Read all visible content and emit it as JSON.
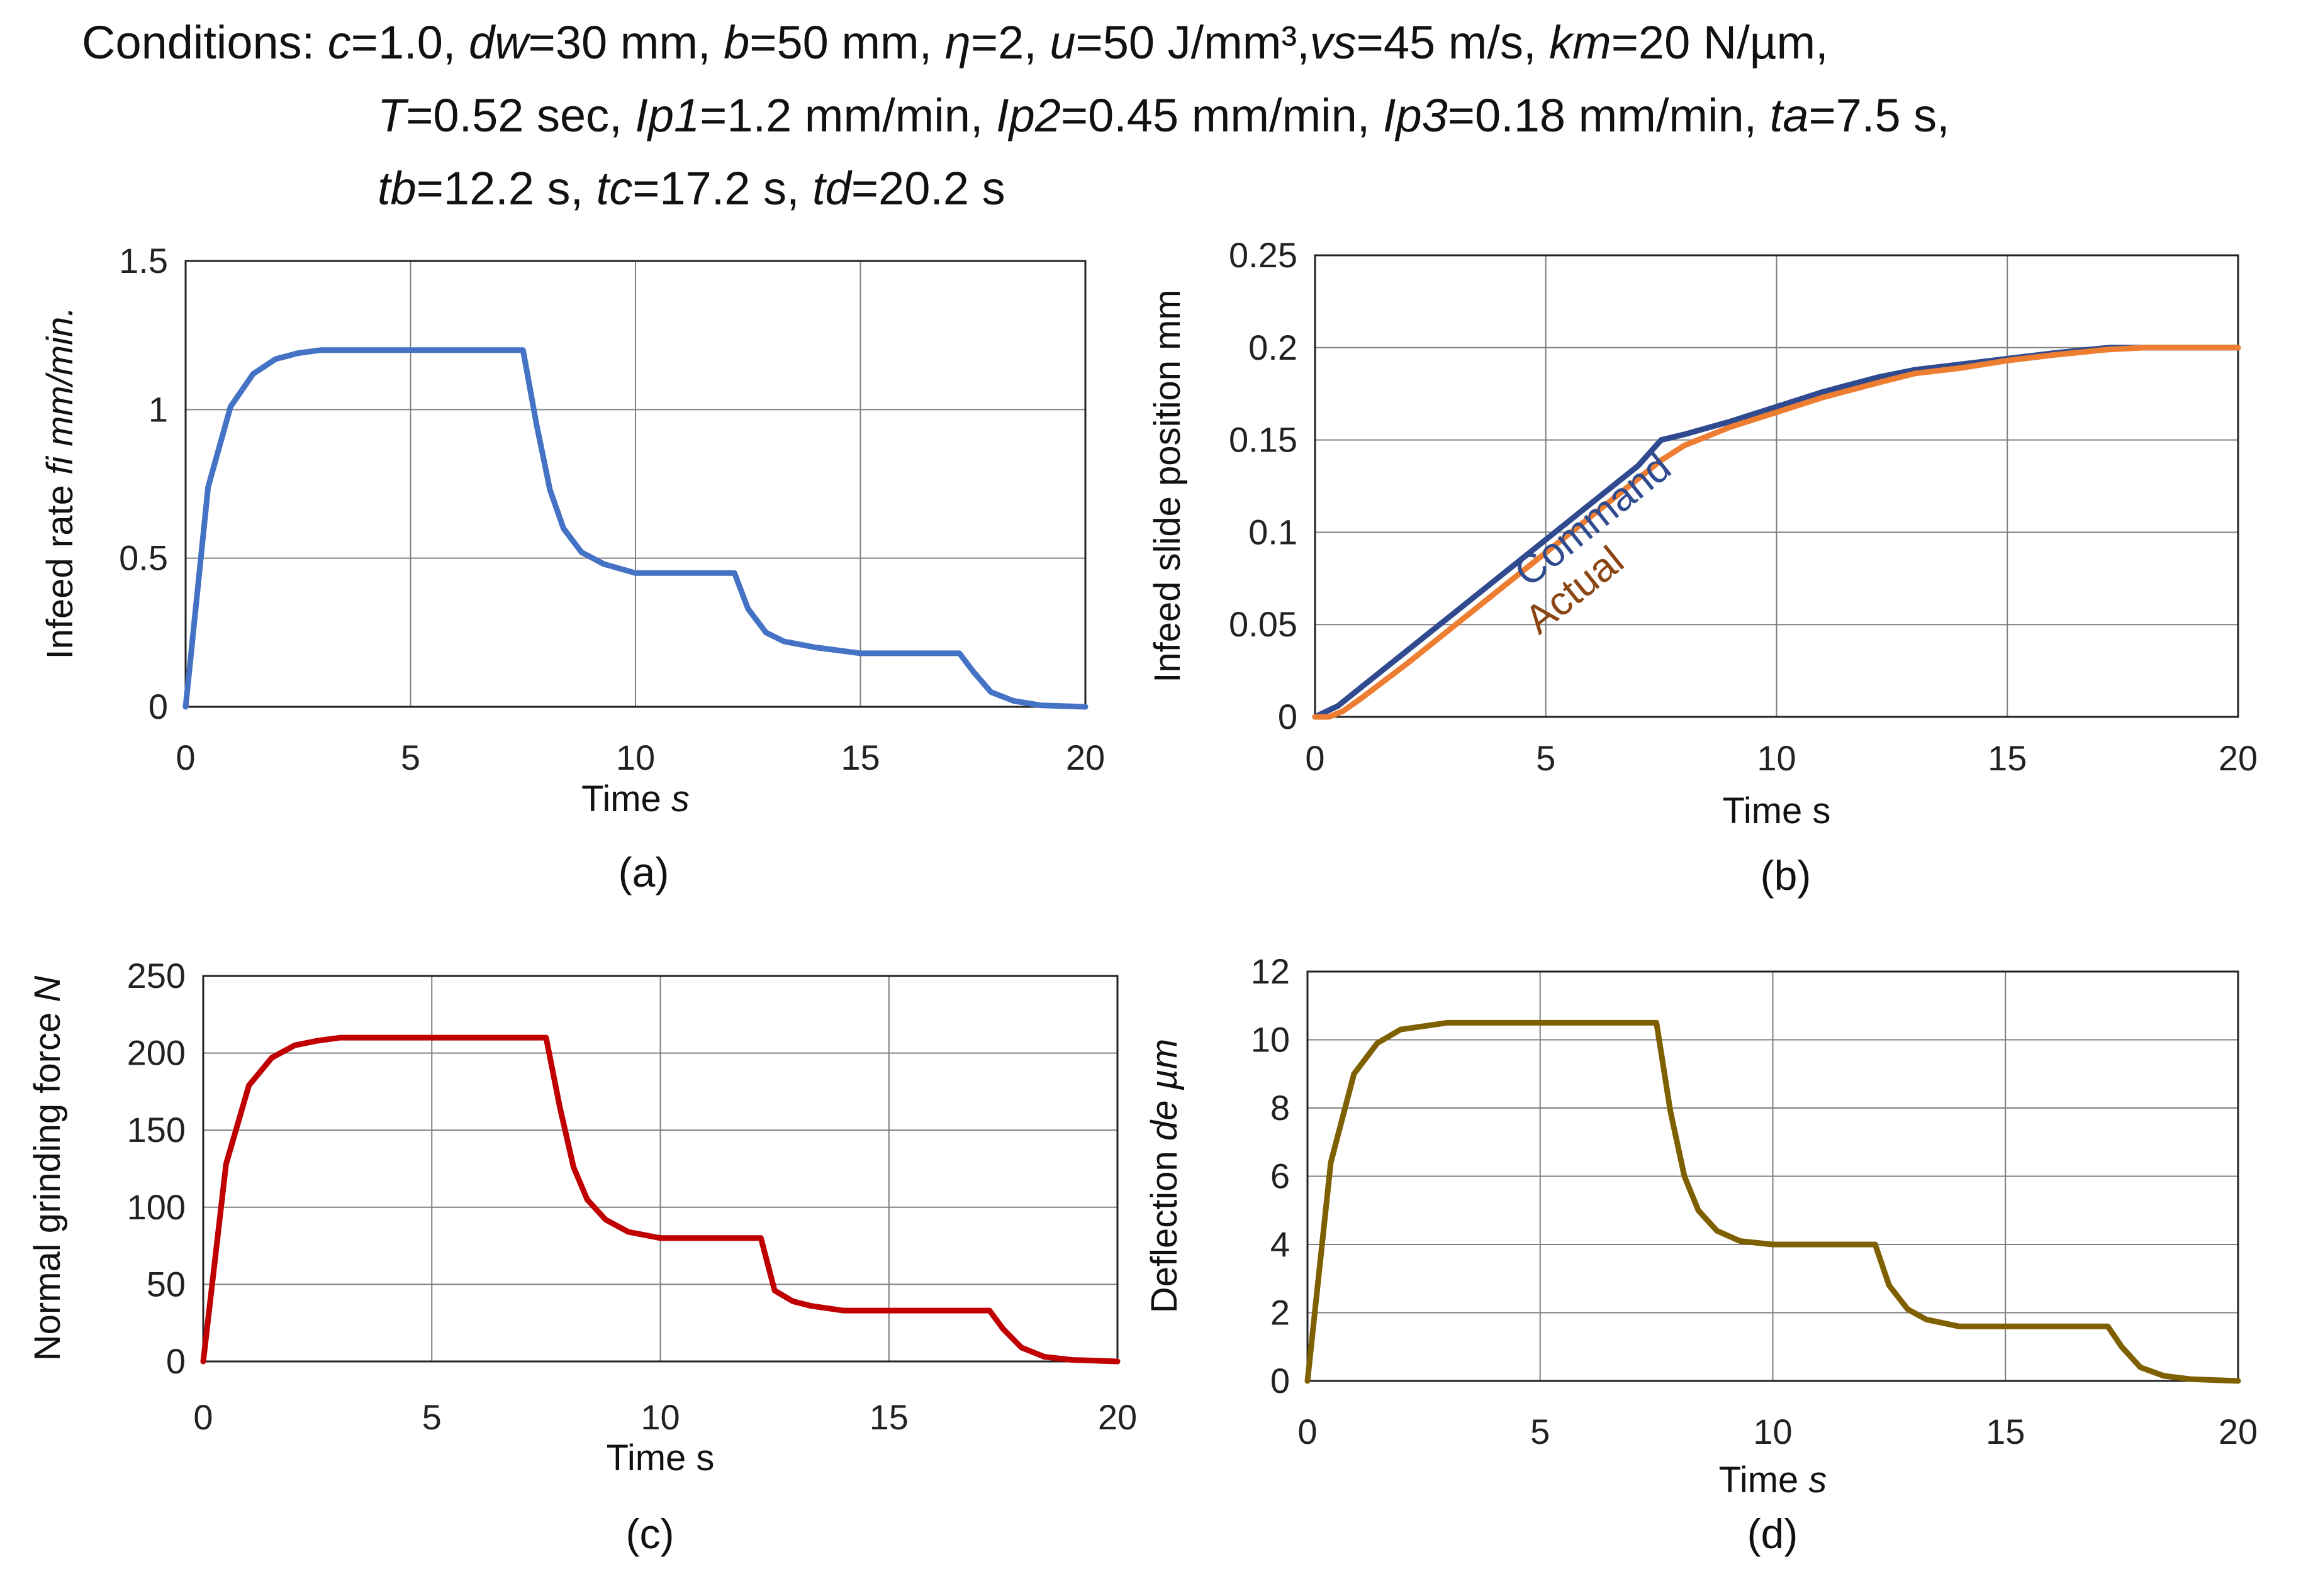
{
  "conditions": {
    "label": "Conditions:",
    "lines": [
      [
        {
          "v": "c",
          "i": true
        },
        {
          "v": "=1.0, ",
          "i": false
        },
        {
          "v": "dw",
          "i": true
        },
        {
          "v": "=30 mm, ",
          "i": false
        },
        {
          "v": "b",
          "i": true
        },
        {
          "v": "=50 mm, ",
          "i": false
        },
        {
          "v": "η",
          "i": true
        },
        {
          "v": "=2, ",
          "i": false
        },
        {
          "v": "u",
          "i": true
        },
        {
          "v": "=50 J/mm³,",
          "i": false
        },
        {
          "v": "vs",
          "i": true
        },
        {
          "v": "=45 m/s, ",
          "i": false
        },
        {
          "v": "km",
          "i": true
        },
        {
          "v": "=20 N/µm,",
          "i": false
        }
      ],
      [
        {
          "v": "T",
          "i": true
        },
        {
          "v": "=0.52 sec, ",
          "i": false
        },
        {
          "v": "Ip1",
          "i": true
        },
        {
          "v": "=1.2 mm/min, ",
          "i": false
        },
        {
          "v": "Ip2",
          "i": true
        },
        {
          "v": "=0.45 mm/min, ",
          "i": false
        },
        {
          "v": "Ip3",
          "i": true
        },
        {
          "v": "=0.18 mm/min, ",
          "i": false
        },
        {
          "v": "ta",
          "i": true
        },
        {
          "v": "=7.5 s,",
          "i": false
        }
      ],
      [
        {
          "v": "tb",
          "i": true
        },
        {
          "v": "=12.2 s, ",
          "i": false
        },
        {
          "v": "tc",
          "i": true
        },
        {
          "v": "=17.2 s, ",
          "i": false
        },
        {
          "v": "td",
          "i": true
        },
        {
          "v": "=20.2 s",
          "i": false
        }
      ]
    ]
  },
  "chart_data": [
    {
      "id": "a",
      "type": "line",
      "caption": "(a)",
      "xlabel": [
        {
          "v": "Time ",
          "i": false
        },
        {
          "v": "s",
          "i": true
        }
      ],
      "ylabel": [
        {
          "v": "Infeed rate ",
          "i": false
        },
        {
          "v": "fi mm/min.",
          "i": true
        }
      ],
      "xlim": [
        0,
        20
      ],
      "ylim": [
        0,
        1.5
      ],
      "xticks": [
        0,
        5,
        10,
        15,
        20
      ],
      "yticks": [
        0,
        0.5,
        1,
        1.5
      ],
      "ytick_labels": [
        "0",
        "0.5",
        "1",
        "1.5"
      ],
      "grid": true,
      "series": [
        {
          "name": "fi",
          "color": "#4472C4",
          "x": [
            0,
            0.5,
            1,
            1.5,
            2,
            2.5,
            3,
            4,
            5,
            6,
            7,
            7.5,
            7.8,
            8.1,
            8.4,
            8.8,
            9.3,
            10,
            11,
            12.2,
            12.5,
            12.9,
            13.3,
            14,
            15,
            16,
            17.2,
            17.5,
            17.9,
            18.4,
            19,
            20
          ],
          "y": [
            0,
            0.74,
            1.01,
            1.12,
            1.17,
            1.19,
            1.2,
            1.2,
            1.2,
            1.2,
            1.2,
            1.2,
            0.95,
            0.73,
            0.6,
            0.52,
            0.48,
            0.45,
            0.45,
            0.45,
            0.33,
            0.25,
            0.22,
            0.2,
            0.18,
            0.18,
            0.18,
            0.12,
            0.05,
            0.02,
            0.005,
            0
          ]
        }
      ]
    },
    {
      "id": "b",
      "type": "line",
      "caption": "(b)",
      "xlabel": [
        {
          "v": "Time s",
          "i": false
        }
      ],
      "ylabel": [
        {
          "v": "Infeed slide position  mm",
          "i": false
        }
      ],
      "xlim": [
        0,
        20
      ],
      "ylim": [
        0,
        0.25
      ],
      "xticks": [
        0,
        5,
        10,
        15,
        20
      ],
      "yticks": [
        0,
        0.05,
        0.1,
        0.15,
        0.2,
        0.25
      ],
      "ytick_labels": [
        "0",
        "0.05",
        "0.1",
        "0.15",
        "0.2",
        "0.25"
      ],
      "grid": true,
      "series": [
        {
          "name": "Command",
          "color": "#2F4A8F",
          "x": [
            0,
            0.5,
            1,
            2,
            3,
            4,
            5,
            6,
            7,
            7.5,
            8,
            9,
            10,
            11,
            12.2,
            13,
            14,
            15,
            16,
            17.2,
            18,
            19,
            20
          ],
          "y": [
            0,
            0.006,
            0.016,
            0.036,
            0.056,
            0.076,
            0.096,
            0.116,
            0.136,
            0.15,
            0.153,
            0.16,
            0.168,
            0.176,
            0.184,
            0.188,
            0.191,
            0.194,
            0.197,
            0.2,
            0.2,
            0.2,
            0.2
          ]
        },
        {
          "name": "Actual",
          "color": "#ED7D31",
          "x": [
            0,
            0.3,
            0.6,
            1,
            2,
            3,
            4,
            5,
            6,
            7,
            7.5,
            8,
            9,
            10,
            11,
            12.2,
            13,
            14,
            15,
            16,
            17.2,
            18,
            19,
            20
          ],
          "y": [
            0,
            0,
            0.003,
            0.01,
            0.029,
            0.049,
            0.069,
            0.089,
            0.109,
            0.129,
            0.139,
            0.147,
            0.157,
            0.165,
            0.173,
            0.181,
            0.186,
            0.189,
            0.193,
            0.196,
            0.199,
            0.2,
            0.2,
            0.2
          ]
        }
      ],
      "annotations": [
        {
          "text": "Command",
          "color": "#2F4A8F",
          "x": 6.2,
          "y": 0.101,
          "series": 0
        },
        {
          "text": "Actual",
          "color": "#8B4513",
          "x": 5.8,
          "y": 0.063,
          "series": 1
        }
      ]
    },
    {
      "id": "c",
      "type": "line",
      "caption": "(c)",
      "xlabel": [
        {
          "v": "Time s",
          "i": false
        }
      ],
      "ylabel": [
        {
          "v": "Normal grinding force ",
          "i": false
        },
        {
          "v": "N",
          "i": true
        }
      ],
      "xlim": [
        0,
        20
      ],
      "ylim": [
        0,
        250
      ],
      "xticks": [
        0,
        5,
        10,
        15,
        20
      ],
      "yticks": [
        0,
        50,
        100,
        150,
        200,
        250
      ],
      "ytick_labels": [
        "0",
        "50",
        "100",
        "150",
        "200",
        "250"
      ],
      "grid": true,
      "series": [
        {
          "name": "force",
          "color": "#C00000",
          "x": [
            0,
            0.5,
            1,
            1.5,
            2,
            2.5,
            3,
            4,
            5,
            6,
            7,
            7.5,
            7.8,
            8.1,
            8.4,
            8.8,
            9.3,
            10,
            11,
            12.2,
            12.5,
            12.9,
            13.3,
            14,
            15,
            16,
            17.2,
            17.5,
            17.9,
            18.4,
            19,
            20
          ],
          "y": [
            0,
            128,
            179,
            197,
            205,
            208,
            210,
            210,
            210,
            210,
            210,
            210,
            165,
            126,
            105,
            92,
            84,
            80,
            80,
            80,
            46,
            39,
            36,
            33,
            33,
            33,
            33,
            21,
            9,
            3,
            1,
            0
          ]
        }
      ]
    },
    {
      "id": "d",
      "type": "line",
      "caption": "(d)",
      "xlabel": [
        {
          "v": "Time ",
          "i": false
        },
        {
          "v": "s",
          "i": true
        }
      ],
      "ylabel": [
        {
          "v": "Deflection ",
          "i": false
        },
        {
          "v": "de µm",
          "i": true
        }
      ],
      "xlim": [
        0,
        20
      ],
      "ylim": [
        0,
        12
      ],
      "xticks": [
        0,
        5,
        10,
        15,
        20
      ],
      "yticks": [
        0,
        2,
        4,
        6,
        8,
        10,
        12
      ],
      "ytick_labels": [
        "0",
        "2",
        "4",
        "6",
        "8",
        "10",
        "12"
      ],
      "grid": true,
      "series": [
        {
          "name": "deflection",
          "color": "#7F6000",
          "x": [
            0,
            0.5,
            1,
            1.5,
            2,
            2.5,
            3,
            4,
            5,
            6,
            7,
            7.5,
            7.8,
            8.1,
            8.4,
            8.8,
            9.3,
            10,
            11,
            12.2,
            12.5,
            12.9,
            13.3,
            14,
            15,
            16,
            17.2,
            17.5,
            17.9,
            18.4,
            19,
            20
          ],
          "y": [
            0,
            6.4,
            9.0,
            9.9,
            10.3,
            10.4,
            10.5,
            10.5,
            10.5,
            10.5,
            10.5,
            10.5,
            7.9,
            6.0,
            5.0,
            4.4,
            4.1,
            4.0,
            4.0,
            4.0,
            2.8,
            2.1,
            1.8,
            1.6,
            1.6,
            1.6,
            1.6,
            1.0,
            0.4,
            0.15,
            0.05,
            0
          ]
        }
      ]
    }
  ]
}
